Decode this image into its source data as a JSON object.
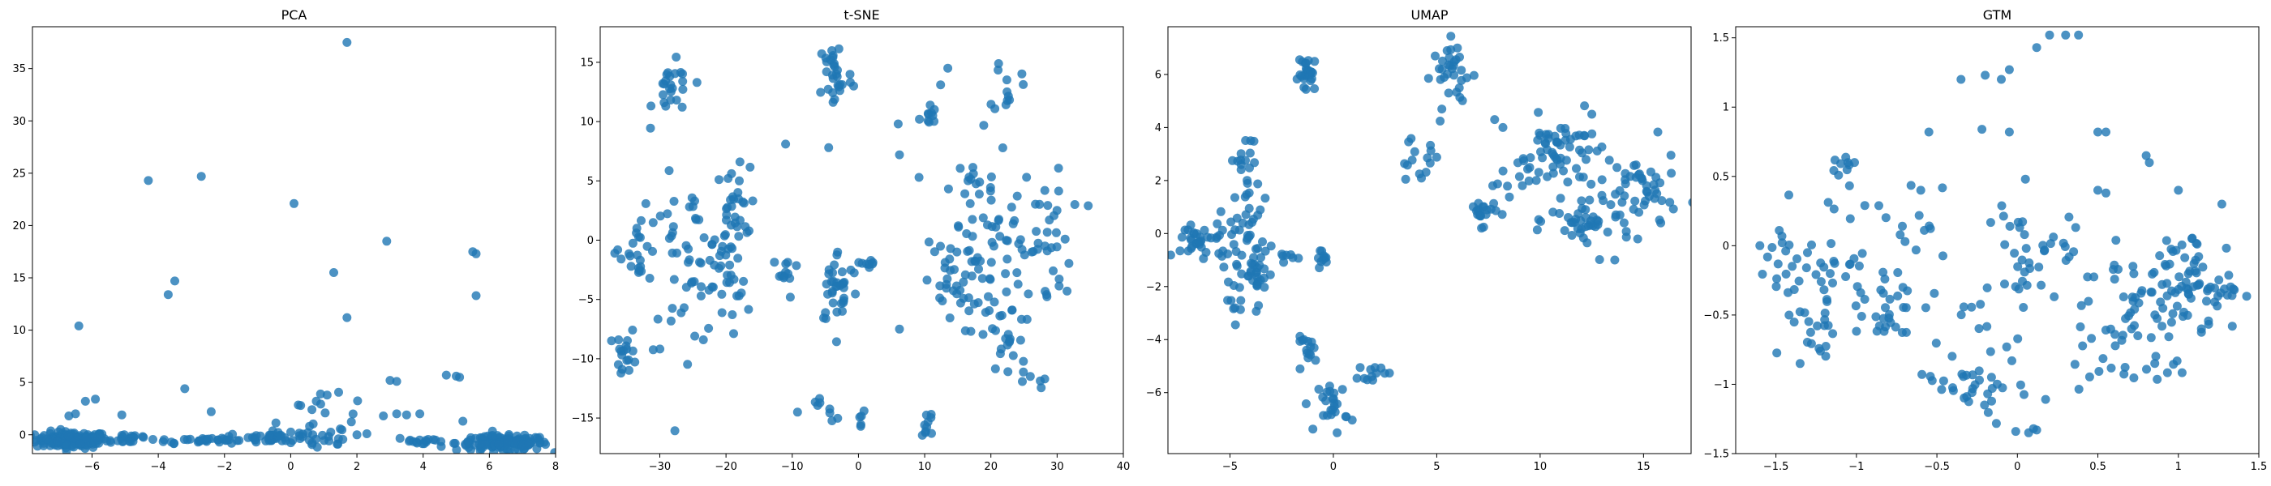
{
  "chart_data": [
    {
      "type": "scatter",
      "title": "PCA",
      "xlim": [
        -7.8,
        8.0
      ],
      "ylim": [
        -1.8,
        39.0
      ],
      "xticks": [
        -8,
        -6,
        -4,
        -2,
        0,
        2,
        4,
        6,
        8
      ],
      "yticks": [
        0,
        5,
        10,
        15,
        20,
        25,
        30,
        35
      ],
      "color": "#1f77b4",
      "clusters": [
        {
          "cx": -6.6,
          "cy": -0.5,
          "sx": 0.55,
          "sy": 0.4,
          "n": 140
        },
        {
          "cx": -4.8,
          "cy": -0.3,
          "sx": 0.3,
          "sy": 0.3,
          "n": 20
        },
        {
          "cx": -2.6,
          "cy": -0.5,
          "sx": 0.9,
          "sy": 0.15,
          "n": 35
        },
        {
          "cx": -0.5,
          "cy": -0.3,
          "sx": 0.7,
          "sy": 0.3,
          "n": 40
        },
        {
          "cx": 1.0,
          "cy": 0.8,
          "sx": 0.5,
          "sy": 1.4,
          "n": 30
        },
        {
          "cx": 4.0,
          "cy": -0.6,
          "sx": 0.4,
          "sy": 0.2,
          "n": 15
        },
        {
          "cx": 6.4,
          "cy": -0.8,
          "sx": 0.7,
          "sy": 0.35,
          "n": 150
        }
      ],
      "points": [
        [
          1.7,
          37.5
        ],
        [
          -2.7,
          24.7
        ],
        [
          -4.3,
          24.3
        ],
        [
          0.1,
          22.1
        ],
        [
          2.9,
          18.5
        ],
        [
          5.5,
          17.5
        ],
        [
          5.6,
          17.3
        ],
        [
          -3.5,
          14.7
        ],
        [
          -3.7,
          13.4
        ],
        [
          5.6,
          13.3
        ],
        [
          1.3,
          15.5
        ],
        [
          1.7,
          11.2
        ],
        [
          -6.4,
          10.4
        ],
        [
          -3.2,
          4.4
        ],
        [
          -2.4,
          2.2
        ],
        [
          3.0,
          5.2
        ],
        [
          3.2,
          5.1
        ],
        [
          4.7,
          5.7
        ],
        [
          5.0,
          5.6
        ],
        [
          5.1,
          5.5
        ],
        [
          -6.2,
          3.2
        ],
        [
          -5.9,
          3.4
        ],
        [
          -6.7,
          1.8
        ],
        [
          -6.5,
          2.0
        ],
        [
          -5.1,
          1.9
        ],
        [
          3.2,
          2.0
        ],
        [
          3.5,
          1.9
        ],
        [
          3.9,
          2.0
        ],
        [
          2.8,
          1.8
        ],
        [
          1.1,
          3.8
        ],
        [
          0.9,
          3.9
        ],
        [
          0.3,
          2.8
        ],
        [
          5.2,
          1.3
        ],
        [
          2.3,
          0.1
        ],
        [
          2.0,
          0.0
        ]
      ]
    },
    {
      "type": "scatter",
      "title": "t-SNE",
      "xlim": [
        -39.0,
        40.0
      ],
      "ylim": [
        -18.0,
        18.0
      ],
      "xticks": [
        -30,
        -20,
        -10,
        0,
        10,
        20,
        30,
        40
      ],
      "yticks": [
        -15,
        -10,
        -5,
        0,
        5,
        10,
        15
      ],
      "color": "#1f77b4",
      "clusters": [
        {
          "cx": -28,
          "cy": 12.5,
          "sx": 1.5,
          "sy": 1.2,
          "n": 25
        },
        {
          "cx": -35,
          "cy": -9.5,
          "sx": 0.8,
          "sy": 1.0,
          "n": 18
        },
        {
          "cx": -33,
          "cy": -0.5,
          "sx": 1.5,
          "sy": 1.5,
          "n": 22
        },
        {
          "cx": -26,
          "cy": -2,
          "sx": 3.0,
          "sy": 3.5,
          "n": 50
        },
        {
          "cx": -19,
          "cy": 2.5,
          "sx": 1.3,
          "sy": 1.8,
          "n": 30
        },
        {
          "cx": -20,
          "cy": -4,
          "sx": 1.8,
          "sy": 2.0,
          "n": 25
        },
        {
          "cx": -11,
          "cy": -3,
          "sx": 1.0,
          "sy": 1.0,
          "n": 12
        },
        {
          "cx": -3.5,
          "cy": 14,
          "sx": 1.3,
          "sy": 1.6,
          "n": 30
        },
        {
          "cx": -3,
          "cy": -4,
          "sx": 1.6,
          "sy": 1.6,
          "n": 35
        },
        {
          "cx": 1.5,
          "cy": -2,
          "sx": 0.5,
          "sy": 0.5,
          "n": 8
        },
        {
          "cx": 10.5,
          "cy": 10.5,
          "sx": 0.6,
          "sy": 0.5,
          "n": 10
        },
        {
          "cx": 10.5,
          "cy": -15.3,
          "sx": 0.5,
          "sy": 0.7,
          "n": 10
        },
        {
          "cx": 22.5,
          "cy": 13,
          "sx": 1.0,
          "sy": 1.3,
          "n": 12
        },
        {
          "cx": 17,
          "cy": 1.5,
          "sx": 3.0,
          "sy": 3.5,
          "n": 45
        },
        {
          "cx": 14,
          "cy": -4,
          "sx": 2.0,
          "sy": 2.0,
          "n": 30
        },
        {
          "cx": 26,
          "cy": 0,
          "sx": 3.0,
          "sy": 3.0,
          "n": 50
        },
        {
          "cx": 22,
          "cy": -8,
          "sx": 2.5,
          "sy": 2.0,
          "n": 25
        },
        {
          "cx": 27,
          "cy": -12,
          "sx": 1.0,
          "sy": 0.6,
          "n": 6
        },
        {
          "cx": -4,
          "cy": -15,
          "sx": 0.5,
          "sy": 0.4,
          "n": 4
        },
        {
          "cx": 0.5,
          "cy": -15.5,
          "sx": 0.4,
          "sy": 0.6,
          "n": 5
        },
        {
          "cx": -6,
          "cy": -13.7,
          "sx": 0.4,
          "sy": 0.3,
          "n": 4
        }
      ],
      "points": [
        [
          -11,
          8.1
        ],
        [
          -4.5,
          7.8
        ],
        [
          -17.9,
          6.6
        ],
        [
          6.0,
          9.8
        ],
        [
          6.2,
          7.2
        ],
        [
          6.2,
          -7.5
        ],
        [
          13.5,
          14.5
        ],
        [
          12.4,
          13.1
        ],
        [
          34.7,
          2.9
        ],
        [
          31.5,
          -4.3
        ],
        [
          -36.8,
          -1.1
        ],
        [
          -9.2,
          -14.5
        ],
        [
          -18.0,
          5.0
        ]
      ]
    },
    {
      "type": "scatter",
      "title": "UMAP",
      "xlim": [
        -8.0,
        17.3
      ],
      "ylim": [
        -8.3,
        7.8
      ],
      "xticks": [
        -5,
        0,
        5,
        10,
        15
      ],
      "yticks": [
        -6,
        -4,
        -2,
        0,
        2,
        4,
        6
      ],
      "color": "#1f77b4",
      "clusters": [
        {
          "cx": -6.3,
          "cy": -0.3,
          "sx": 0.7,
          "sy": 0.4,
          "n": 35
        },
        {
          "cx": -4.3,
          "cy": 0.1,
          "sx": 0.6,
          "sy": 0.6,
          "n": 30
        },
        {
          "cx": -4.3,
          "cy": 2.5,
          "sx": 0.3,
          "sy": 0.6,
          "n": 20
        },
        {
          "cx": -3.8,
          "cy": -1.5,
          "sx": 0.5,
          "sy": 0.6,
          "n": 30
        },
        {
          "cx": -4.6,
          "cy": -2.5,
          "sx": 0.3,
          "sy": 0.3,
          "n": 10
        },
        {
          "cx": -2.2,
          "cy": -1.0,
          "sx": 0.3,
          "sy": 0.2,
          "n": 6
        },
        {
          "cx": -0.6,
          "cy": -0.9,
          "sx": 0.15,
          "sy": 0.15,
          "n": 10
        },
        {
          "cx": -1.2,
          "cy": 6.0,
          "sx": 0.25,
          "sy": 0.35,
          "n": 25
        },
        {
          "cx": -1.2,
          "cy": -4.4,
          "sx": 0.3,
          "sy": 0.25,
          "n": 15
        },
        {
          "cx": 0.0,
          "cy": -6.5,
          "sx": 0.35,
          "sy": 0.5,
          "n": 25
        },
        {
          "cx": 2.0,
          "cy": -5.2,
          "sx": 0.4,
          "sy": 0.15,
          "n": 12
        },
        {
          "cx": 4.0,
          "cy": 2.7,
          "sx": 0.6,
          "sy": 0.4,
          "n": 15
        },
        {
          "cx": 5.8,
          "cy": 6.0,
          "sx": 0.5,
          "sy": 0.6,
          "n": 30
        },
        {
          "cx": 7.2,
          "cy": 0.8,
          "sx": 0.35,
          "sy": 0.25,
          "n": 20
        },
        {
          "cx": 8.5,
          "cy": 2.1,
          "sx": 0.6,
          "sy": 0.5,
          "n": 10
        },
        {
          "cx": 11.0,
          "cy": 3.0,
          "sx": 1.0,
          "sy": 0.7,
          "n": 60
        },
        {
          "cx": 12.5,
          "cy": 0.5,
          "sx": 1.0,
          "sy": 0.6,
          "n": 50
        },
        {
          "cx": 15.0,
          "cy": 1.5,
          "sx": 0.8,
          "sy": 0.8,
          "n": 40
        }
      ],
      "points": [
        [
          5.5,
          6.9
        ],
        [
          6.0,
          7.0
        ],
        [
          7.8,
          4.3
        ],
        [
          8.2,
          4.0
        ],
        [
          12.5,
          4.5
        ]
      ]
    },
    {
      "type": "scatter",
      "title": "GTM",
      "xlim": [
        -1.75,
        1.5
      ],
      "ylim": [
        -1.5,
        1.58
      ],
      "xticks": [
        -1.5,
        -1.0,
        -0.5,
        0.0,
        0.5,
        1.0,
        1.5
      ],
      "yticks": [
        -1.5,
        -1.0,
        -0.5,
        0.0,
        0.5,
        1.0,
        1.5
      ],
      "color": "#1f77b4",
      "clusters": [
        {
          "cx": -1.45,
          "cy": -0.15,
          "sx": 0.1,
          "sy": 0.2,
          "n": 18
        },
        {
          "cx": -1.2,
          "cy": -0.3,
          "sx": 0.1,
          "sy": 0.2,
          "n": 20
        },
        {
          "cx": -1.3,
          "cy": -0.7,
          "sx": 0.08,
          "sy": 0.08,
          "n": 12
        },
        {
          "cx": -1.05,
          "cy": 0.2,
          "sx": 0.1,
          "sy": 0.15,
          "n": 12
        },
        {
          "cx": -1.1,
          "cy": 0.55,
          "sx": 0.04,
          "sy": 0.06,
          "n": 8
        },
        {
          "cx": -0.8,
          "cy": -0.4,
          "sx": 0.15,
          "sy": 0.15,
          "n": 35
        },
        {
          "cx": -0.65,
          "cy": 0.2,
          "sx": 0.1,
          "sy": 0.15,
          "n": 12
        },
        {
          "cx": -0.35,
          "cy": -0.95,
          "sx": 0.15,
          "sy": 0.1,
          "n": 18
        },
        {
          "cx": -0.15,
          "cy": -1.05,
          "sx": 0.15,
          "sy": 0.1,
          "n": 15
        },
        {
          "cx": -0.3,
          "cy": -0.55,
          "sx": 0.08,
          "sy": 0.1,
          "n": 8
        },
        {
          "cx": 0.0,
          "cy": -0.3,
          "sx": 0.08,
          "sy": 0.25,
          "n": 22
        },
        {
          "cx": 0.25,
          "cy": 0.0,
          "sx": 0.1,
          "sy": 0.1,
          "n": 10
        },
        {
          "cx": 0.5,
          "cy": -0.85,
          "sx": 0.08,
          "sy": 0.1,
          "n": 10
        },
        {
          "cx": 0.75,
          "cy": -0.55,
          "sx": 0.15,
          "sy": 0.12,
          "n": 30
        },
        {
          "cx": 0.85,
          "cy": -0.9,
          "sx": 0.1,
          "sy": 0.05,
          "n": 10
        },
        {
          "cx": 1.0,
          "cy": -0.2,
          "sx": 0.15,
          "sy": 0.15,
          "n": 40
        },
        {
          "cx": 1.2,
          "cy": -0.3,
          "sx": 0.1,
          "sy": 0.15,
          "n": 30
        },
        {
          "cx": 0.6,
          "cy": -0.3,
          "sx": 0.1,
          "sy": 0.1,
          "n": 12
        },
        {
          "cx": -0.05,
          "cy": 0.2,
          "sx": 0.08,
          "sy": 0.08,
          "n": 8
        }
      ],
      "points": [
        [
          0.2,
          1.52
        ],
        [
          0.3,
          1.52
        ],
        [
          0.38,
          1.52
        ],
        [
          0.12,
          1.43
        ],
        [
          -0.05,
          1.27
        ],
        [
          -0.2,
          1.23
        ],
        [
          -0.1,
          1.2
        ],
        [
          -0.22,
          0.84
        ],
        [
          -0.05,
          0.82
        ],
        [
          -0.55,
          0.82
        ],
        [
          0.5,
          0.82
        ],
        [
          0.55,
          0.82
        ],
        [
          0.8,
          0.65
        ],
        [
          0.82,
          0.6
        ],
        [
          0.5,
          0.4
        ],
        [
          0.55,
          0.38
        ],
        [
          0.05,
          0.48
        ],
        [
          -0.6,
          0.4
        ],
        [
          1.0,
          0.4
        ],
        [
          1.27,
          0.3
        ],
        [
          -0.35,
          1.2
        ],
        [
          -0.01,
          -1.34
        ],
        [
          0.1,
          -1.32
        ],
        [
          0.12,
          -1.33
        ],
        [
          0.07,
          -1.35
        ],
        [
          -1.6,
          0.0
        ],
        [
          -1.35,
          -0.85
        ]
      ]
    }
  ]
}
